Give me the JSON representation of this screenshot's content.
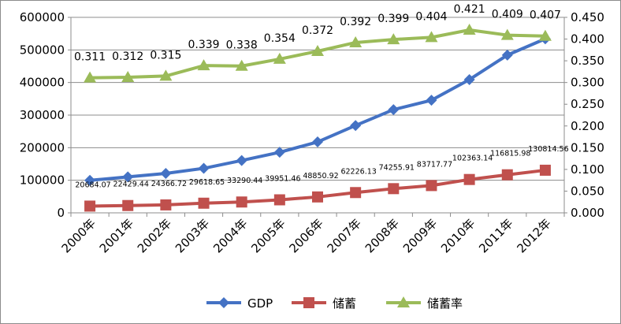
{
  "chart_data": {
    "type": "line",
    "categories": [
      "2000年",
      "2001年",
      "2002年",
      "2003年",
      "2004年",
      "2005年",
      "2006年",
      "2007年",
      "2008年",
      "2009年",
      "2010年",
      "2011年",
      "2012年"
    ],
    "series": [
      {
        "name": "GDP",
        "axis": "left",
        "color": "#4472c4",
        "marker": "diamond",
        "values": [
          99776,
          110270,
          121002,
          136565,
          160714,
          185896,
          217657,
          268019,
          316752,
          345629,
          408903,
          484124,
          534123
        ]
      },
      {
        "name": "储蓄",
        "axis": "left",
        "color": "#c0504d",
        "marker": "square",
        "values": [
          20684.07,
          22429.44,
          24366.72,
          29618.65,
          33290.44,
          39951.46,
          48850.92,
          62226.13,
          74255.91,
          83717.77,
          102363.14,
          116815.98,
          130814.56
        ],
        "labels": [
          "20684.07",
          "22429.44",
          "24366.72",
          "29618.65",
          "33290.44",
          "39951.46",
          "48850.92",
          "62226.13",
          "74255.91",
          "83717.77",
          "102363.14",
          "116815.98",
          "130814.56"
        ]
      },
      {
        "name": "储蓄率",
        "axis": "right",
        "color": "#9bbb59",
        "marker": "triangle",
        "values": [
          0.311,
          0.312,
          0.315,
          0.339,
          0.338,
          0.354,
          0.372,
          0.392,
          0.399,
          0.404,
          0.421,
          0.409,
          0.407
        ],
        "labels": [
          "0.311",
          "0.312",
          "0.315",
          "0.339",
          "0.338",
          "0.354",
          "0.372",
          "0.392",
          "0.399",
          "0.404",
          "0.421",
          "0.409",
          "0.407"
        ]
      }
    ],
    "left_axis": {
      "ylim": [
        0,
        600000
      ],
      "ticks": [
        0,
        100000,
        200000,
        300000,
        400000,
        500000,
        600000
      ],
      "tick_labels": [
        "0",
        "100000",
        "200000",
        "300000",
        "400000",
        "500000",
        "600000"
      ]
    },
    "right_axis": {
      "ylim": [
        0,
        0.45
      ],
      "ticks": [
        0,
        0.05,
        0.1,
        0.15,
        0.2,
        0.25,
        0.3,
        0.35,
        0.4,
        0.45
      ],
      "tick_labels": [
        "0.000",
        "0.050",
        "0.100",
        "0.150",
        "0.200",
        "0.250",
        "0.300",
        "0.350",
        "0.400",
        "0.450"
      ]
    },
    "grid": true,
    "legend_position": "bottom",
    "title": "",
    "xlabel": "",
    "ylabel": ""
  }
}
